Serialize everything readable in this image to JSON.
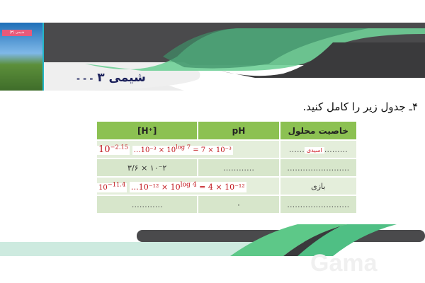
{
  "header": {
    "title": "شیمی ۳",
    "subtitle_dashes": "- - -",
    "cover_label": "شیمی (۳)"
  },
  "question": "۴ـ جدول زیر را کامل کنید.",
  "table": {
    "headers": [
      "[H⁺]",
      "pH",
      "خاصیت محلول"
    ],
    "rows": [
      {
        "h_answer_base": "10",
        "h_answer_exp": "−2.15",
        "h_work": "…10⁻³ × 10",
        "h_work_exp": "log 7",
        "h_work_end": " = 7 × 10⁻³",
        "ph": "",
        "property_dots_left": "……",
        "property_answer": "اسیدی",
        "property_dots_right": "………"
      },
      {
        "h": "۳/۶ × ۱۰⁻۲",
        "ph": "…………",
        "property": "……………………"
      },
      {
        "h_answer_base": "10",
        "h_answer_exp": "−11.4",
        "h_work": "…10⁻¹² × 10",
        "h_work_exp": "log 4",
        "h_work_end": " = 4 × 10⁻¹²",
        "ph": "",
        "property": "بازی"
      },
      {
        "h": "…………",
        "ph": "۰",
        "property": "……………………"
      }
    ]
  },
  "watermark": "Gama",
  "colors": {
    "green": "#4fbf84",
    "dark": "#4a4a4c",
    "header_green": "#8cc152"
  }
}
